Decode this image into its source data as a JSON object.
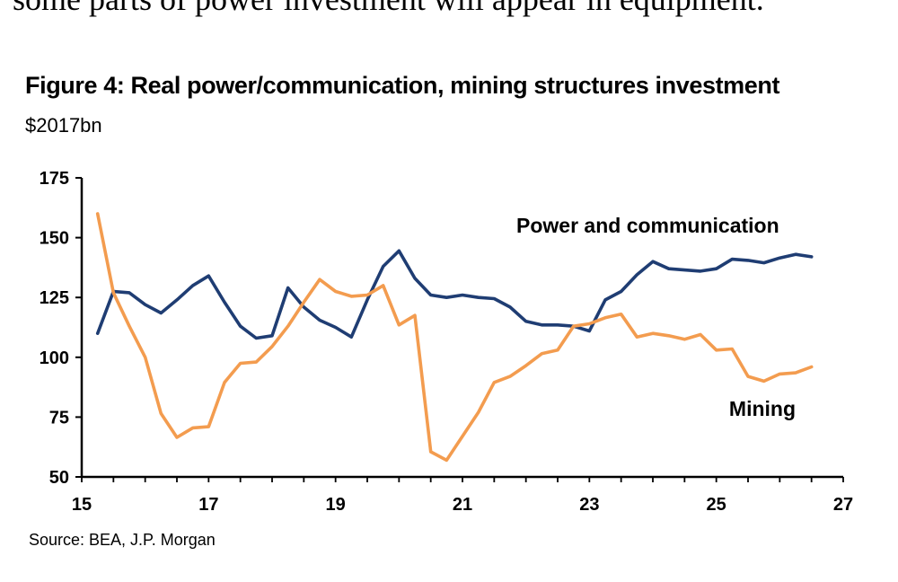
{
  "intro_text": "some parts of power investment will appear in equipment.",
  "chart_data": {
    "type": "line",
    "title": "Figure 4: Real power/communication, mining structures investment",
    "subtitle": "$2017bn",
    "source": "Source: BEA, J.P. Morgan",
    "xlabel": "",
    "ylabel": "",
    "xlim": [
      15,
      27
    ],
    "ylim": [
      50,
      175
    ],
    "x_ticks": [
      15,
      17,
      19,
      21,
      23,
      25,
      27
    ],
    "y_ticks": [
      50,
      75,
      100,
      125,
      150,
      175
    ],
    "grid": false,
    "x": [
      15.25,
      15.5,
      15.75,
      16,
      16.25,
      16.5,
      16.75,
      17,
      17.25,
      17.5,
      17.75,
      18,
      18.25,
      18.5,
      18.75,
      19,
      19.25,
      19.5,
      19.75,
      20,
      20.25,
      20.5,
      20.75,
      21,
      21.25,
      21.5,
      21.75,
      22,
      22.25,
      22.5,
      22.75,
      23,
      23.25,
      23.5,
      23.75,
      24,
      24.25,
      24.5,
      24.75,
      25,
      25.25,
      25.5,
      25.75,
      26,
      26.25,
      26.5
    ],
    "series": [
      {
        "name": "Power and communication",
        "color": "#1f3d73",
        "values": [
          110,
          127.5,
          127,
          122,
          118.5,
          124,
          130,
          134,
          123,
          113,
          108,
          109,
          129,
          121,
          115.5,
          112.5,
          108.5,
          124,
          138,
          144.5,
          133,
          126,
          125,
          126,
          125,
          124.5,
          121,
          115,
          113.5,
          113.5,
          113,
          111,
          124,
          127.5,
          134.5,
          140,
          137,
          136.5,
          136,
          137,
          141,
          140.5,
          139.5,
          141.5,
          143,
          142
        ]
      },
      {
        "name": "Mining",
        "color": "#f39c4f",
        "values": [
          160,
          127,
          113,
          100,
          76.5,
          66.5,
          70.5,
          71,
          89.5,
          97.5,
          98,
          104.5,
          113,
          123,
          132.5,
          127.5,
          125.5,
          126,
          130,
          113.5,
          117.5,
          60.5,
          57,
          67,
          77,
          89.5,
          92,
          96.5,
          101.5,
          103,
          113,
          114,
          116.5,
          118,
          108.5,
          110,
          109,
          107.5,
          109.5,
          103,
          103.5,
          92,
          90,
          93,
          93.5,
          96
        ]
      }
    ],
    "annotations": [
      {
        "text": "Power and communication",
        "series": 0
      },
      {
        "text": "Mining",
        "series": 1
      }
    ]
  }
}
